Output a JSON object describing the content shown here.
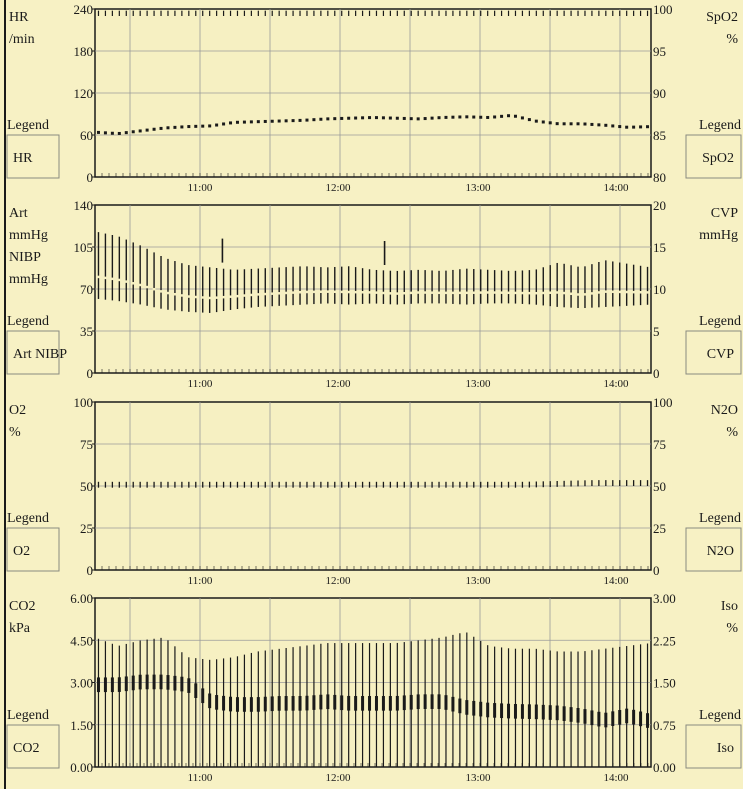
{
  "colors": {
    "background": "#f7f1c4",
    "plot_bg": "#f6f0c2",
    "grid": "#9a9a9a",
    "ink": "#1a1a1a"
  },
  "time_ticks": [
    "11:00",
    "12:00",
    "13:00",
    "14:00"
  ],
  "panels": [
    {
      "left_label": [
        "HR",
        "/min"
      ],
      "right_label": [
        "SpO2",
        "%"
      ],
      "left_legend": "HR",
      "right_legend": "SpO2",
      "left_ticks": [
        "240",
        "180",
        "120",
        "60",
        "0"
      ],
      "right_ticks": [
        "100",
        "95",
        "90",
        "85",
        "80"
      ]
    },
    {
      "left_label": [
        "Art",
        "mmHg",
        "NIBP",
        "mmHg"
      ],
      "right_label": [
        "CVP",
        "mmHg"
      ],
      "left_legend": "Art NIBP",
      "right_legend": "CVP",
      "left_ticks": [
        "140",
        "105",
        "70",
        "35",
        "0"
      ],
      "right_ticks": [
        "20",
        "15",
        "10",
        "5",
        "0"
      ]
    },
    {
      "left_label": [
        "O2",
        "%"
      ],
      "right_label": [
        "N2O",
        "%"
      ],
      "left_legend": "O2",
      "right_legend": "N2O",
      "left_ticks": [
        "100",
        "75",
        "50",
        "25",
        "0"
      ],
      "right_ticks": [
        "100",
        "75",
        "50",
        "25",
        "0"
      ]
    },
    {
      "left_label": [
        "CO2",
        "kPa"
      ],
      "right_label": [
        "Iso",
        "%"
      ],
      "left_legend": "CO2",
      "right_legend": "Iso",
      "left_ticks": [
        "6.00",
        "4.50",
        "3.00",
        "1.50",
        "0.00"
      ],
      "right_ticks": [
        "3.00",
        "2.25",
        "1.50",
        "0.75",
        "0.00"
      ]
    }
  ],
  "legend_word": "Legend",
  "chart_data": [
    {
      "type": "scatter",
      "title": "",
      "xlabel": "",
      "x_ticks": [
        "11:00",
        "12:00",
        "13:00",
        "14:00"
      ],
      "y_left": {
        "label": "HR /min",
        "ylim": [
          0,
          240
        ]
      },
      "y_right": {
        "label": "SpO2 %",
        "ylim": [
          80,
          100
        ]
      },
      "series": [
        {
          "name": "HR",
          "axis": "left",
          "style": "dots",
          "x": [
            "10:25",
            "10:35",
            "10:45",
            "10:55",
            "11:05",
            "11:15",
            "11:25",
            "11:35",
            "11:45",
            "11:55",
            "12:05",
            "12:15",
            "12:25",
            "12:35",
            "12:45",
            "12:55",
            "13:05",
            "13:15",
            "13:25",
            "13:35",
            "13:45",
            "13:55",
            "14:05",
            "14:15",
            "14:25"
          ],
          "values": [
            64,
            62,
            66,
            70,
            72,
            73,
            78,
            79,
            80,
            81,
            83,
            84,
            85,
            84,
            83,
            85,
            86,
            85,
            88,
            80,
            76,
            76,
            74,
            71,
            72
          ]
        },
        {
          "name": "SpO2",
          "axis": "right",
          "style": "dots",
          "x": [
            "10:25",
            "11:00",
            "11:30",
            "12:00",
            "12:30",
            "13:00",
            "13:30",
            "14:00",
            "14:25"
          ],
          "values": [
            99.8,
            99.8,
            99.8,
            99.8,
            99.8,
            99.8,
            99.8,
            99.8,
            99.8
          ]
        }
      ]
    },
    {
      "type": "bar",
      "title": "",
      "xlabel": "",
      "x_ticks": [
        "11:00",
        "12:00",
        "13:00",
        "14:00"
      ],
      "y_left": {
        "label": "Art mmHg / NIBP mmHg",
        "ylim": [
          0,
          140
        ]
      },
      "y_right": {
        "label": "CVP mmHg",
        "ylim": [
          0,
          20
        ]
      },
      "series": [
        {
          "name": "Art",
          "axis": "left",
          "style": "systolic-diastolic range",
          "x": [
            "10:25",
            "10:35",
            "10:45",
            "10:55",
            "11:05",
            "11:15",
            "11:25",
            "11:35",
            "11:45",
            "11:55",
            "12:05",
            "12:15",
            "12:25",
            "12:35",
            "12:45",
            "12:55",
            "13:05",
            "13:15",
            "13:25",
            "13:35",
            "13:45",
            "13:55",
            "14:05",
            "14:15",
            "14:25"
          ],
          "systolic": [
            118,
            114,
            106,
            96,
            90,
            88,
            86,
            87,
            88,
            89,
            88,
            89,
            86,
            85,
            86,
            85,
            87,
            86,
            85,
            86,
            92,
            88,
            94,
            91,
            88
          ],
          "diastolic": [
            62,
            60,
            57,
            53,
            51,
            50,
            53,
            55,
            56,
            57,
            58,
            57,
            58,
            57,
            58,
            58,
            57,
            58,
            58,
            57,
            55,
            54,
            55,
            56,
            57
          ]
        },
        {
          "name": "NIBP",
          "axis": "left",
          "style": "markers",
          "x": [
            "11:20",
            "12:30"
          ],
          "values": [
            102,
            100
          ]
        },
        {
          "name": "CVP",
          "axis": "right",
          "style": "dots",
          "x": [],
          "values": []
        }
      ]
    },
    {
      "type": "line",
      "title": "",
      "xlabel": "",
      "x_ticks": [
        "11:00",
        "12:00",
        "13:00",
        "14:00"
      ],
      "y_left": {
        "label": "O2 %",
        "ylim": [
          0,
          100
        ]
      },
      "y_right": {
        "label": "N2O %",
        "ylim": [
          0,
          100
        ]
      },
      "series": [
        {
          "name": "O2",
          "axis": "left",
          "style": "breath ticks",
          "x": [
            "10:25",
            "11:00",
            "11:30",
            "12:00",
            "12:30",
            "13:00",
            "13:30",
            "14:00",
            "14:25"
          ],
          "values": [
            51,
            51,
            51,
            51,
            51,
            51,
            51,
            52,
            52
          ]
        },
        {
          "name": "N2O",
          "axis": "right",
          "style": "dots",
          "x": [],
          "values": []
        }
      ]
    },
    {
      "type": "bar",
      "title": "",
      "xlabel": "",
      "x_ticks": [
        "11:00",
        "12:00",
        "13:00",
        "14:00"
      ],
      "y_left": {
        "label": "CO2 kPa",
        "ylim": [
          0,
          6
        ]
      },
      "y_right": {
        "label": "Iso %",
        "ylim": [
          0,
          3
        ]
      },
      "series": [
        {
          "name": "CO2",
          "axis": "left",
          "style": "breath bars",
          "x": [
            "10:25",
            "10:35",
            "10:45",
            "10:55",
            "11:05",
            "11:15",
            "11:25",
            "11:35",
            "11:45",
            "11:55",
            "12:05",
            "12:15",
            "12:25",
            "12:35",
            "12:45",
            "12:55",
            "13:05",
            "13:15",
            "13:25",
            "13:35",
            "13:45",
            "13:55",
            "14:05",
            "14:15",
            "14:25"
          ],
          "values": [
            4.6,
            4.3,
            4.5,
            4.6,
            3.9,
            3.8,
            3.9,
            4.1,
            4.2,
            4.3,
            4.4,
            4.4,
            4.4,
            4.4,
            4.5,
            4.6,
            4.8,
            4.3,
            4.2,
            4.2,
            4.1,
            4.1,
            4.2,
            4.3,
            4.4
          ]
        },
        {
          "name": "Iso",
          "axis": "right",
          "style": "band",
          "x": [
            "10:25",
            "10:35",
            "10:45",
            "10:55",
            "11:05",
            "11:15",
            "11:25",
            "11:35",
            "11:45",
            "11:55",
            "12:05",
            "12:15",
            "12:25",
            "12:35",
            "12:45",
            "12:55",
            "13:05",
            "13:15",
            "13:25",
            "13:35",
            "13:45",
            "13:55",
            "14:05",
            "14:15",
            "14:25"
          ],
          "values": [
            1.45,
            1.45,
            1.5,
            1.5,
            1.45,
            1.15,
            1.1,
            1.1,
            1.12,
            1.12,
            1.15,
            1.12,
            1.12,
            1.12,
            1.15,
            1.15,
            1.05,
            1.0,
            0.98,
            0.97,
            0.95,
            0.9,
            0.82,
            0.9,
            0.8
          ]
        }
      ]
    }
  ]
}
